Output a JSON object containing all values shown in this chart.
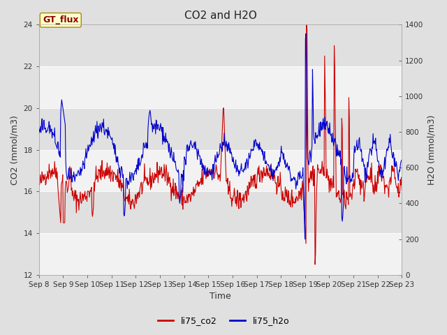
{
  "title": "CO2 and H2O",
  "xlabel": "Time",
  "ylabel_left": "CO2 (mmol/m3)",
  "ylabel_right": "H2O (mmol/m3)",
  "co2_ylim": [
    12,
    24
  ],
  "h2o_ylim": [
    0,
    1400
  ],
  "co2_yticks": [
    12,
    14,
    16,
    18,
    20,
    22,
    24
  ],
  "h2o_yticks": [
    0,
    200,
    400,
    600,
    800,
    1000,
    1200,
    1400
  ],
  "xtick_labels": [
    "Sep 8",
    "Sep 9",
    "Sep 10",
    "Sep 11",
    "Sep 12",
    "Sep 13",
    "Sep 14",
    "Sep 15",
    "Sep 16",
    "Sep 17",
    "Sep 18",
    "Sep 19",
    "Sep 20",
    "Sep 21",
    "Sep 22",
    "Sep 23"
  ],
  "co2_color": "#cc0000",
  "h2o_color": "#0000cc",
  "bg_color": "#e0e0e0",
  "plot_bg_light": "#f2f2f2",
  "plot_bg_dark": "#e0e0e0",
  "annotation_label": "GT_flux",
  "annotation_bg": "#ffffcc",
  "annotation_border": "#aa8800",
  "legend_labels": [
    "li75_co2",
    "li75_h2o"
  ],
  "title_fontsize": 11,
  "axis_label_fontsize": 9,
  "tick_fontsize": 7.5,
  "legend_fontsize": 9
}
